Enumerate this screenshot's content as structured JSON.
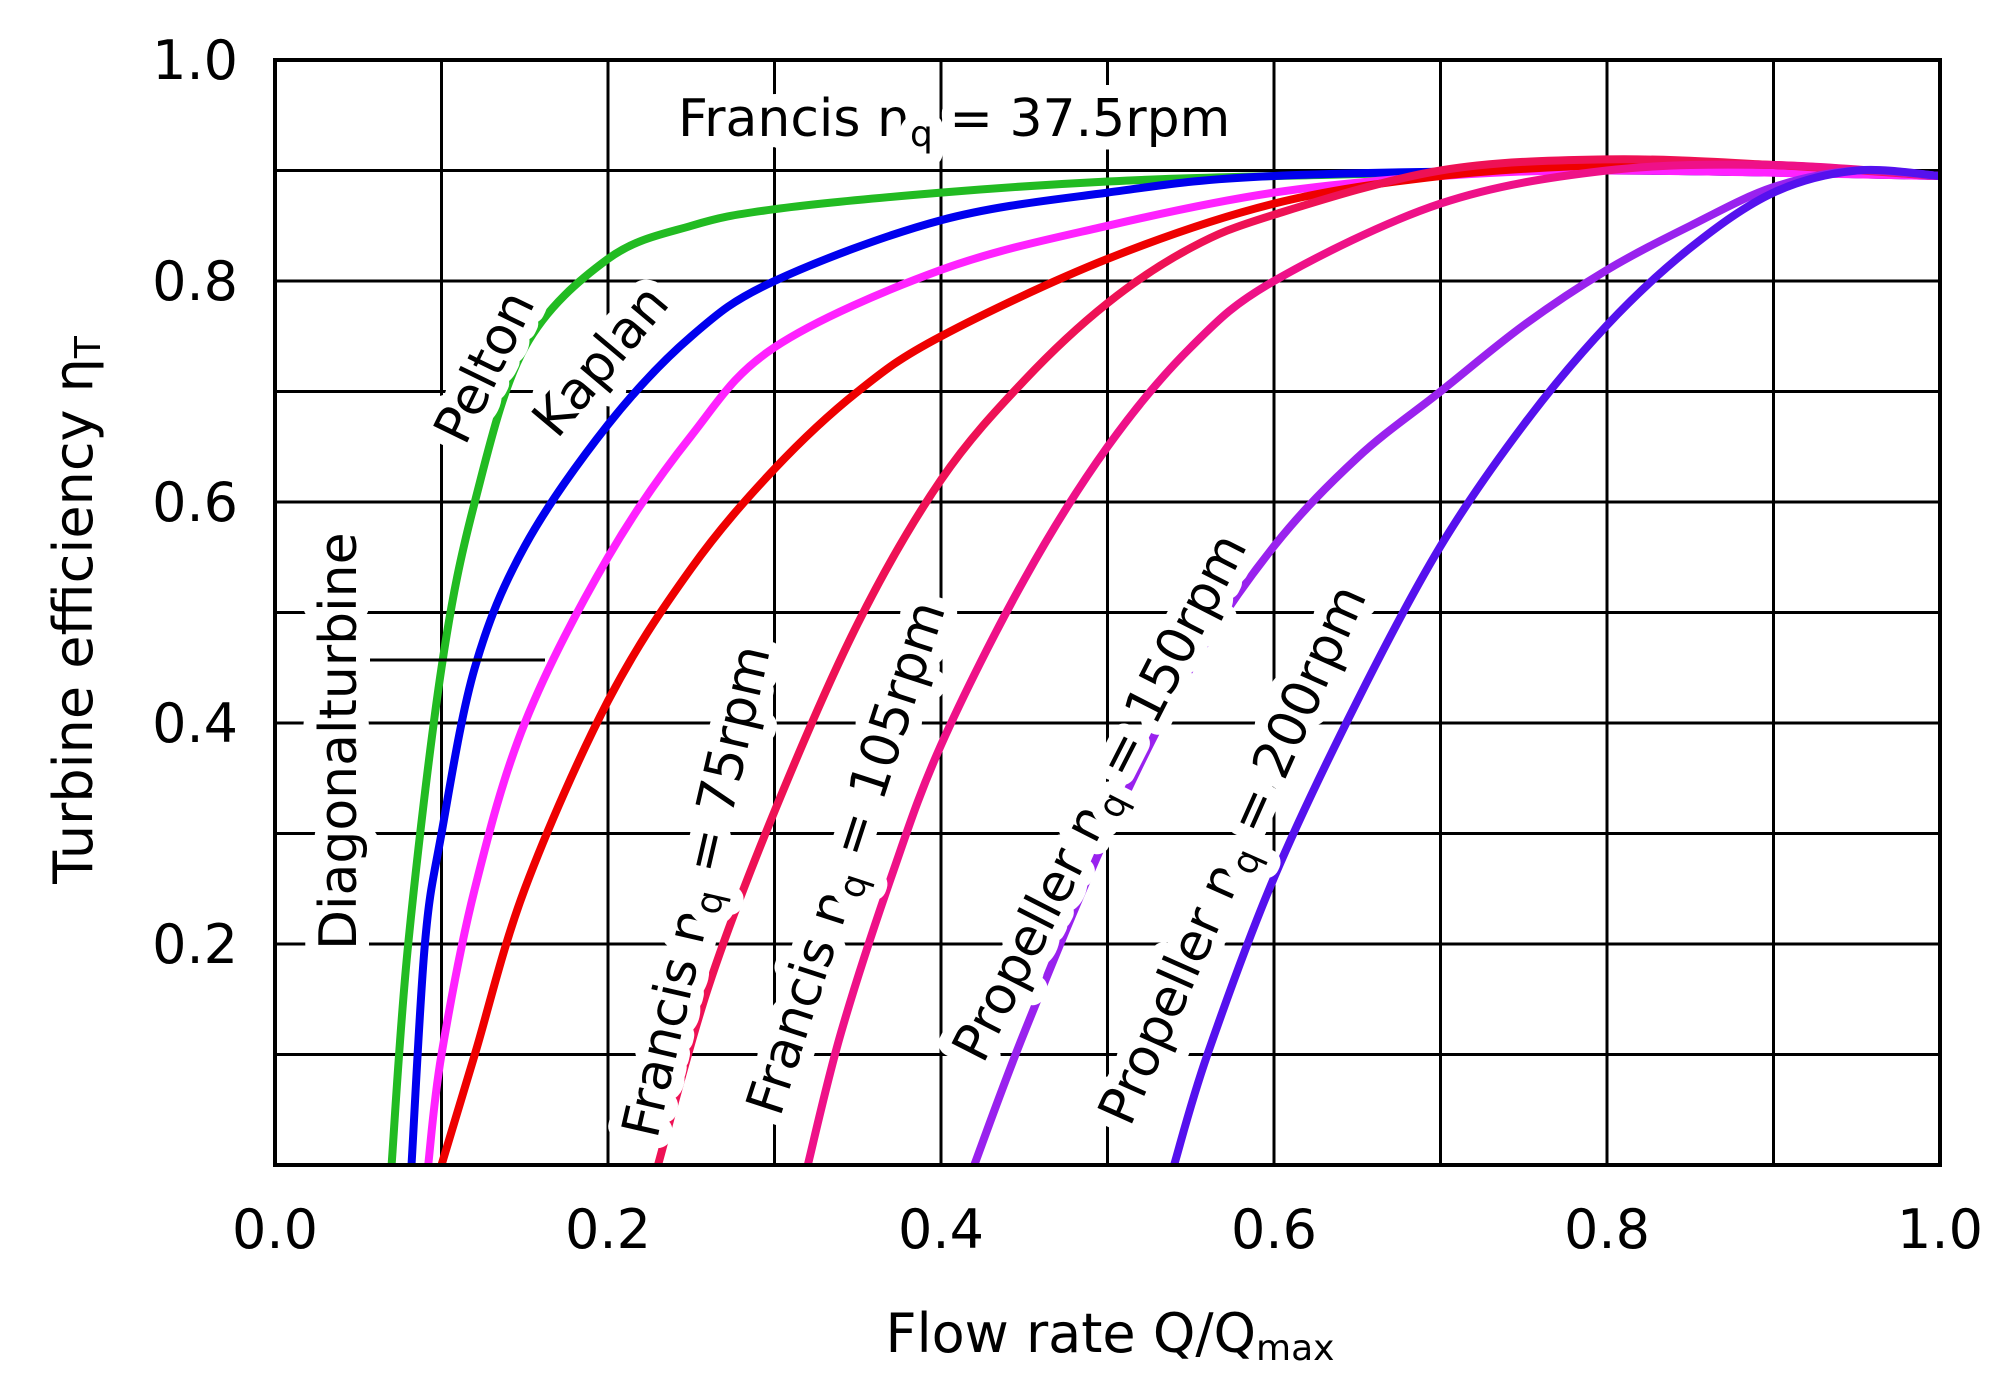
{
  "chart_data": {
    "type": "line",
    "title": "",
    "xlabel": "Flow rate Q/Q",
    "xlabel_sub": "max",
    "ylabel": "Turbine efficiency η",
    "ylabel_sub": "T",
    "xlim": [
      0.0,
      1.0
    ],
    "ylim": [
      0.0,
      1.0
    ],
    "grid": true,
    "x_ticks": [
      "0.0",
      "0.2",
      "0.4",
      "0.6",
      "0.8",
      "1.0"
    ],
    "y_ticks": [
      "0.2",
      "0.4",
      "0.6",
      "0.8",
      "1.0"
    ],
    "series": [
      {
        "name": "Pelton",
        "color": "#22bb22",
        "points": [
          [
            0.07,
            0.0
          ],
          [
            0.08,
            0.2
          ],
          [
            0.1,
            0.45
          ],
          [
            0.12,
            0.6
          ],
          [
            0.15,
            0.74
          ],
          [
            0.2,
            0.82
          ],
          [
            0.25,
            0.85
          ],
          [
            0.3,
            0.865
          ],
          [
            0.4,
            0.88
          ],
          [
            0.5,
            0.89
          ],
          [
            0.6,
            0.895
          ],
          [
            0.8,
            0.9
          ],
          [
            1.0,
            0.895
          ]
        ]
      },
      {
        "name": "Kaplan",
        "color": "#0000ee",
        "points": [
          [
            0.082,
            0.0
          ],
          [
            0.09,
            0.2
          ],
          [
            0.1,
            0.3
          ],
          [
            0.12,
            0.45
          ],
          [
            0.15,
            0.56
          ],
          [
            0.2,
            0.67
          ],
          [
            0.25,
            0.75
          ],
          [
            0.3,
            0.8
          ],
          [
            0.4,
            0.855
          ],
          [
            0.5,
            0.88
          ],
          [
            0.6,
            0.895
          ],
          [
            0.8,
            0.9
          ],
          [
            1.0,
            0.895
          ]
        ]
      },
      {
        "name": "Diagonalturbine",
        "color": "#ff22ff",
        "points": [
          [
            0.092,
            0.0
          ],
          [
            0.1,
            0.1
          ],
          [
            0.12,
            0.25
          ],
          [
            0.15,
            0.4
          ],
          [
            0.2,
            0.55
          ],
          [
            0.25,
            0.66
          ],
          [
            0.3,
            0.74
          ],
          [
            0.4,
            0.81
          ],
          [
            0.5,
            0.85
          ],
          [
            0.6,
            0.88
          ],
          [
            0.7,
            0.895
          ],
          [
            0.8,
            0.9
          ],
          [
            1.0,
            0.895
          ]
        ]
      },
      {
        "name": "Francis nq = 37.5rpm",
        "color": "#ee0000",
        "points": [
          [
            0.1,
            0.0
          ],
          [
            0.12,
            0.1
          ],
          [
            0.15,
            0.25
          ],
          [
            0.2,
            0.42
          ],
          [
            0.25,
            0.54
          ],
          [
            0.3,
            0.63
          ],
          [
            0.35,
            0.7
          ],
          [
            0.4,
            0.75
          ],
          [
            0.5,
            0.82
          ],
          [
            0.6,
            0.87
          ],
          [
            0.7,
            0.895
          ],
          [
            0.8,
            0.905
          ],
          [
            0.9,
            0.905
          ],
          [
            1.0,
            0.895
          ]
        ]
      },
      {
        "name": "Francis nq = 75rpm",
        "color": "#ee1155",
        "points": [
          [
            0.23,
            0.0
          ],
          [
            0.26,
            0.16
          ],
          [
            0.3,
            0.32
          ],
          [
            0.35,
            0.49
          ],
          [
            0.4,
            0.62
          ],
          [
            0.45,
            0.71
          ],
          [
            0.5,
            0.78
          ],
          [
            0.55,
            0.83
          ],
          [
            0.6,
            0.86
          ],
          [
            0.7,
            0.9
          ],
          [
            0.8,
            0.91
          ],
          [
            0.9,
            0.905
          ],
          [
            1.0,
            0.895
          ]
        ]
      },
      {
        "name": "Francis nq = 105rpm",
        "color": "#ee1188",
        "points": [
          [
            0.32,
            0.0
          ],
          [
            0.34,
            0.12
          ],
          [
            0.37,
            0.26
          ],
          [
            0.4,
            0.38
          ],
          [
            0.45,
            0.53
          ],
          [
            0.5,
            0.65
          ],
          [
            0.55,
            0.74
          ],
          [
            0.6,
            0.8
          ],
          [
            0.7,
            0.87
          ],
          [
            0.8,
            0.9
          ],
          [
            0.9,
            0.905
          ],
          [
            1.0,
            0.895
          ]
        ]
      },
      {
        "name": "Propeller nq = 150rpm",
        "color": "#9922ee",
        "points": [
          [
            0.42,
            0.0
          ],
          [
            0.45,
            0.12
          ],
          [
            0.5,
            0.3
          ],
          [
            0.55,
            0.45
          ],
          [
            0.6,
            0.56
          ],
          [
            0.65,
            0.64
          ],
          [
            0.7,
            0.7
          ],
          [
            0.75,
            0.76
          ],
          [
            0.8,
            0.81
          ],
          [
            0.85,
            0.85
          ],
          [
            0.9,
            0.885
          ],
          [
            0.95,
            0.9
          ],
          [
            1.0,
            0.895
          ]
        ]
      },
      {
        "name": "Propeller nq = 200rpm",
        "color": "#5511ee",
        "points": [
          [
            0.54,
            0.0
          ],
          [
            0.56,
            0.1
          ],
          [
            0.6,
            0.26
          ],
          [
            0.65,
            0.42
          ],
          [
            0.7,
            0.56
          ],
          [
            0.75,
            0.67
          ],
          [
            0.8,
            0.76
          ],
          [
            0.85,
            0.83
          ],
          [
            0.9,
            0.88
          ],
          [
            0.95,
            0.9
          ],
          [
            1.0,
            0.895
          ]
        ]
      }
    ],
    "annotations": [
      {
        "text": "Pelton"
      },
      {
        "text": "Kaplan"
      },
      {
        "text": "Diagonalturbine"
      },
      {
        "text": "Francis n",
        "sub": "q",
        "rest": " = 37.5rpm"
      },
      {
        "text": "Francis n",
        "sub": "q",
        "rest": " = 75rpm"
      },
      {
        "text": "Francis n",
        "sub": "q",
        "rest": " = 105rpm"
      },
      {
        "text": "Propeller n",
        "sub": "q",
        "rest": " = 150rpm"
      },
      {
        "text": "Propeller n",
        "sub": "q",
        "rest": " = 200rpm"
      }
    ]
  }
}
